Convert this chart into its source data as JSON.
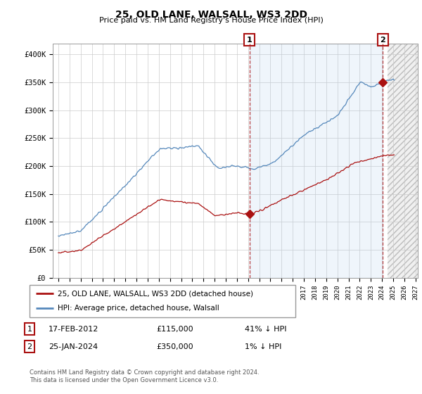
{
  "title": "25, OLD LANE, WALSALL, WS3 2DD",
  "subtitle": "Price paid vs. HM Land Registry's House Price Index (HPI)",
  "xlim_start": 1994.5,
  "xlim_end": 2027.2,
  "ylim": [
    0,
    420000
  ],
  "yticks": [
    0,
    50000,
    100000,
    150000,
    200000,
    250000,
    300000,
    350000,
    400000
  ],
  "ytick_labels": [
    "£0",
    "£50K",
    "£100K",
    "£150K",
    "£200K",
    "£250K",
    "£300K",
    "£350K",
    "£400K"
  ],
  "hpi_color": "#5588bb",
  "price_color": "#aa1111",
  "tx1_x": 2012.12,
  "tx1_y": 115000,
  "tx2_x": 2024.07,
  "tx2_y": 350000,
  "fill_between_color": "#ddeeff",
  "hatch_start": 2024.5,
  "legend_line1": "25, OLD LANE, WALSALL, WS3 2DD (detached house)",
  "legend_line2": "HPI: Average price, detached house, Walsall",
  "row1": [
    "1",
    "17-FEB-2012",
    "£115,000",
    "41% ↓ HPI"
  ],
  "row2": [
    "2",
    "25-JAN-2024",
    "£350,000",
    "1% ↓ HPI"
  ],
  "footer": "Contains HM Land Registry data © Crown copyright and database right 2024.\nThis data is licensed under the Open Government Licence v3.0.",
  "grid_color": "#cccccc",
  "bg_color": "#ffffff"
}
